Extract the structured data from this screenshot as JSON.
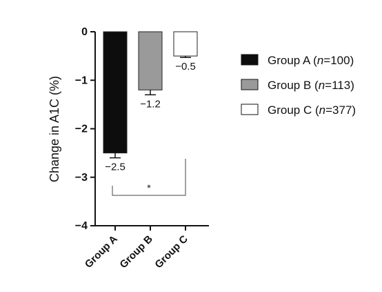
{
  "chart_data": {
    "type": "bar",
    "ylabel": "Change in A1C (%)",
    "ylim": [
      -4,
      0
    ],
    "yticks": [
      0,
      -1,
      -2,
      -3,
      -4
    ],
    "ytick_labels": [
      "0",
      "−1",
      "−2",
      "−3",
      "−4"
    ],
    "categories": [
      "Group A",
      "Group B",
      "Group C"
    ],
    "values": [
      -2.5,
      -1.2,
      -0.5
    ],
    "error": [
      0.1,
      0.1,
      0.03
    ],
    "data_labels": [
      "−2.5",
      "−1.2",
      "−0.5"
    ],
    "bar_colors": [
      "#0d0d0d",
      "#9a9a9a",
      "#ffffff"
    ],
    "legend": {
      "placement": "right",
      "entries": [
        {
          "prefix": "Group A (",
          "n_label": "n",
          "suffix": "=100)"
        },
        {
          "prefix": "Group B (",
          "n_label": "n",
          "suffix": "=113)"
        },
        {
          "prefix": "Group C (",
          "n_label": "n",
          "suffix": "=377)"
        }
      ]
    },
    "annotation": {
      "text": "*",
      "between": [
        "Group A",
        "Group C"
      ]
    },
    "grid": false
  }
}
